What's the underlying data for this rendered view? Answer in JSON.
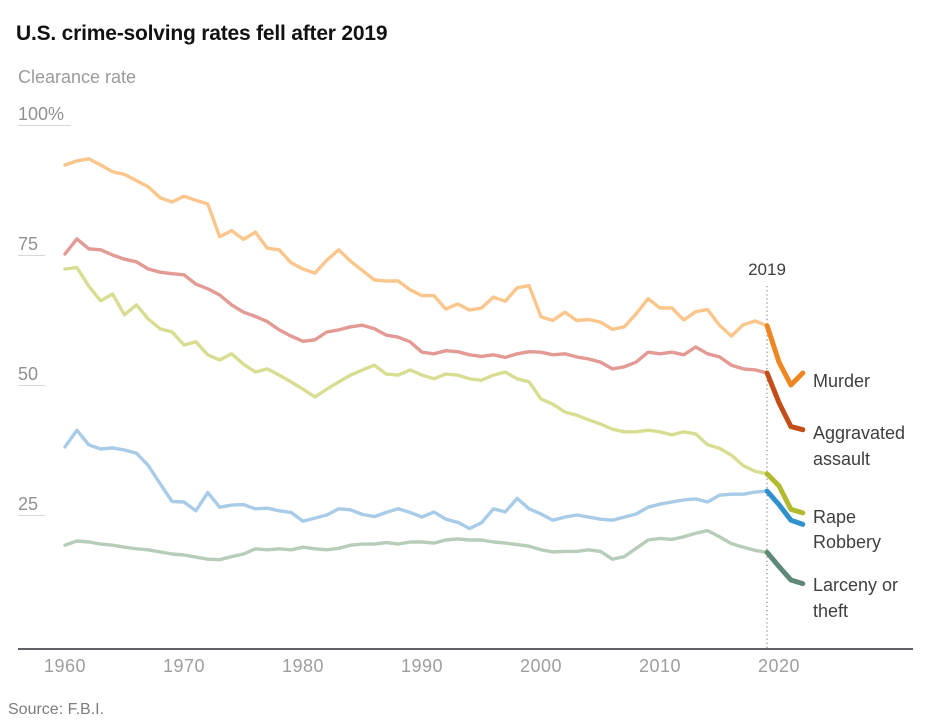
{
  "header": {
    "title": "U.S. crime-solving rates fell after 2019"
  },
  "source": "Source: F.B.I.",
  "chart_data": {
    "type": "line",
    "title": "U.S. crime-solving rates fell after 2019",
    "ylabel": "Clearance rate",
    "xlabel": "",
    "ylim": [
      0,
      100
    ],
    "grid": "none",
    "legend_position": "right-end-of-line",
    "annotation": "2019",
    "highlight_split_year": 2019,
    "y_ticks": [
      "100%",
      "75",
      "50",
      "25"
    ],
    "y_tick_values": [
      100,
      75,
      50,
      25
    ],
    "x_ticks": [
      "1960",
      "1970",
      "1980",
      "1990",
      "2000",
      "2010",
      "2020"
    ],
    "x_tick_values": [
      1960,
      1970,
      1980,
      1990,
      2000,
      2010,
      2020
    ],
    "years": [
      1960,
      1961,
      1962,
      1963,
      1964,
      1965,
      1966,
      1967,
      1968,
      1969,
      1970,
      1971,
      1972,
      1973,
      1974,
      1975,
      1976,
      1977,
      1978,
      1979,
      1980,
      1981,
      1982,
      1983,
      1984,
      1985,
      1986,
      1987,
      1988,
      1989,
      1990,
      1991,
      1992,
      1993,
      1994,
      1995,
      1996,
      1997,
      1998,
      1999,
      2000,
      2001,
      2002,
      2003,
      2004,
      2005,
      2006,
      2007,
      2008,
      2009,
      2010,
      2011,
      2012,
      2013,
      2014,
      2015,
      2016,
      2017,
      2018,
      2019,
      2020,
      2021,
      2022
    ],
    "series": [
      {
        "name": "Murder",
        "label": "Murder",
        "color_before_2019": "#fac68c",
        "color_after_2019": "#f08621",
        "values": [
          92.3,
          93.1,
          93.5,
          92.3,
          91.0,
          90.5,
          89.3,
          88.1,
          86.0,
          85.2,
          86.3,
          85.5,
          84.8,
          78.5,
          79.7,
          78.0,
          79.4,
          76.3,
          76.0,
          73.5,
          72.3,
          71.5,
          74.0,
          76.0,
          73.8,
          72.0,
          70.2,
          70.0,
          70.0,
          68.3,
          67.2,
          67.2,
          64.6,
          65.6,
          64.4,
          64.8,
          66.9,
          66.1,
          68.7,
          69.1,
          63.1,
          62.4,
          64.0,
          62.4,
          62.6,
          62.1,
          60.7,
          61.2,
          63.7,
          66.6,
          64.8,
          64.8,
          62.5,
          64.1,
          64.5,
          61.5,
          59.4,
          61.6,
          62.3,
          61.4,
          54.4,
          50.0,
          52.3
        ]
      },
      {
        "name": "Aggravated assault",
        "label": "Aggravated assault",
        "color_before_2019": "#e39a94",
        "color_after_2019": "#c44e17",
        "values": [
          75.2,
          78.1,
          76.2,
          76.0,
          75.0,
          74.2,
          73.7,
          72.3,
          71.7,
          71.4,
          71.2,
          69.4,
          68.5,
          67.3,
          65.4,
          64.0,
          63.2,
          62.2,
          60.6,
          59.4,
          58.4,
          58.7,
          60.2,
          60.6,
          61.2,
          61.5,
          60.8,
          59.6,
          59.2,
          58.3,
          56.3,
          56.0,
          56.6,
          56.4,
          55.8,
          55.5,
          55.8,
          55.3,
          56.0,
          56.4,
          56.3,
          55.8,
          56.0,
          55.4,
          55.0,
          54.4,
          53.1,
          53.5,
          54.4,
          56.3,
          56.0,
          56.3,
          55.8,
          57.3,
          56.0,
          55.4,
          53.8,
          53.1,
          52.9,
          52.3,
          46.6,
          42.0,
          41.4
        ]
      },
      {
        "name": "Rape",
        "label": "Rape",
        "color_before_2019": "#d9dd92",
        "color_after_2019": "#b2ba30",
        "values": [
          72.3,
          72.6,
          69.0,
          66.2,
          67.5,
          63.5,
          65.4,
          62.7,
          60.8,
          60.2,
          57.7,
          58.3,
          55.8,
          54.8,
          56.0,
          54.0,
          52.5,
          53.1,
          51.9,
          50.6,
          49.2,
          47.7,
          49.2,
          50.6,
          51.9,
          52.9,
          53.8,
          52.1,
          51.9,
          52.9,
          51.9,
          51.2,
          52.1,
          51.9,
          51.2,
          50.9,
          51.9,
          52.5,
          51.2,
          50.6,
          47.3,
          46.3,
          44.8,
          44.2,
          43.3,
          42.5,
          41.5,
          41.0,
          41.0,
          41.3,
          41.0,
          40.4,
          41.0,
          40.6,
          38.5,
          37.8,
          36.5,
          34.5,
          33.4,
          32.9,
          30.6,
          26.1,
          25.4
        ]
      },
      {
        "name": "Robbery",
        "label": "Robbery",
        "color_before_2019": "#a8cce8",
        "color_after_2019": "#3090cd",
        "values": [
          38.1,
          41.3,
          38.5,
          37.7,
          37.9,
          37.5,
          36.9,
          34.5,
          31.0,
          27.6,
          27.5,
          25.8,
          29.3,
          26.5,
          26.9,
          27.0,
          26.2,
          26.3,
          25.8,
          25.5,
          23.8,
          24.4,
          25.0,
          26.2,
          26.0,
          25.1,
          24.7,
          25.5,
          26.2,
          25.5,
          24.6,
          25.6,
          24.2,
          23.6,
          22.4,
          23.5,
          26.2,
          25.6,
          28.2,
          26.2,
          25.2,
          24.0,
          24.6,
          25.0,
          24.6,
          24.2,
          24.0,
          24.6,
          25.2,
          26.5,
          27.1,
          27.5,
          27.9,
          28.1,
          27.5,
          28.8,
          29.0,
          29.0,
          29.4,
          29.6,
          27.0,
          24.0,
          23.2
        ]
      },
      {
        "name": "Larceny or theft",
        "label": "Larceny or theft",
        "color_before_2019": "#b7ccb9",
        "color_after_2019": "#5f8876",
        "values": [
          19.2,
          20.0,
          19.8,
          19.4,
          19.2,
          18.8,
          18.5,
          18.3,
          17.9,
          17.5,
          17.3,
          16.9,
          16.5,
          16.4,
          17.0,
          17.5,
          18.5,
          18.3,
          18.5,
          18.3,
          18.8,
          18.5,
          18.3,
          18.6,
          19.2,
          19.4,
          19.4,
          19.7,
          19.4,
          19.8,
          19.8,
          19.6,
          20.2,
          20.4,
          20.2,
          20.2,
          19.8,
          19.6,
          19.3,
          19.0,
          18.3,
          17.9,
          18.0,
          18.0,
          18.3,
          18.0,
          16.5,
          17.0,
          18.6,
          20.2,
          20.5,
          20.3,
          20.8,
          21.5,
          22.0,
          20.8,
          19.5,
          18.8,
          18.2,
          17.8,
          15.1,
          12.5,
          11.8
        ]
      }
    ]
  }
}
